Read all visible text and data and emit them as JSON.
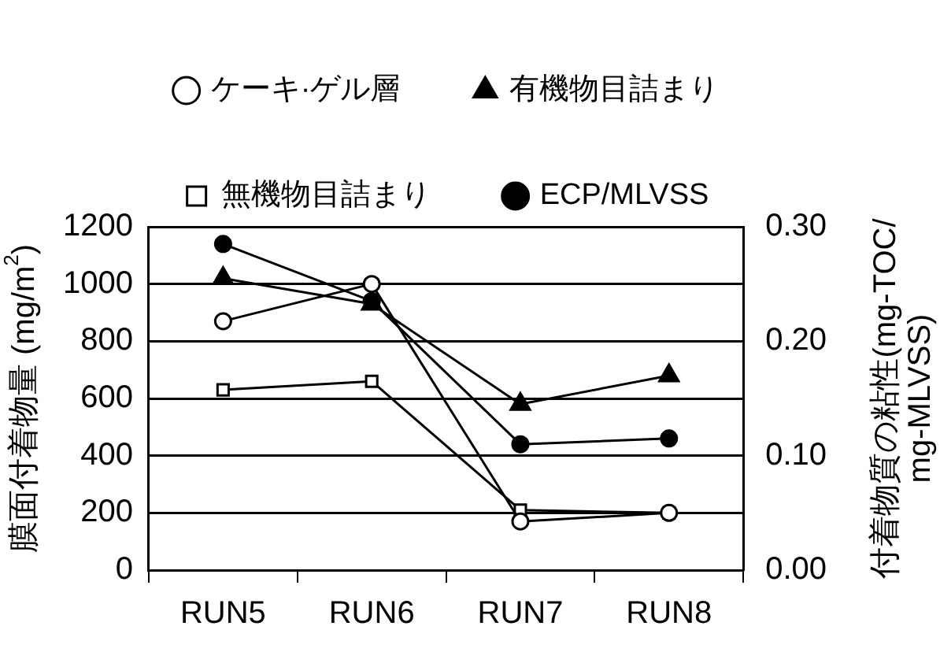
{
  "chart_data": {
    "type": "line",
    "categories": [
      "RUN5",
      "RUN6",
      "RUN7",
      "RUN8"
    ],
    "ylabel": "膜面付着物量 (mg/m$^{2}$)",
    "y2label": "付着物質の粘性(mg-TOC/mg-MLVSS)",
    "ylim": [
      0,
      1200
    ],
    "yticks": [
      0,
      200,
      400,
      600,
      800,
      1000,
      1200
    ],
    "y2lim": [
      0,
      0.3
    ],
    "y2ticks": [
      {
        "value": 0,
        "label": "0.00"
      },
      {
        "value": 0.1,
        "label": "0.10"
      },
      {
        "value": 0.2,
        "label": "0.20"
      },
      {
        "value": 0.3,
        "label": "0.30"
      }
    ],
    "grid": "y",
    "legend": "top",
    "line_style": "solid",
    "series": [
      {
        "name": "ケーキ·ゲル層",
        "color": "#000000",
        "marker": "circle",
        "colors": [
          "#ffffff",
          "#ffffff",
          "#ffffff",
          "#ffffff"
        ],
        "values": [
          870,
          1000,
          170,
          200
        ]
      },
      {
        "name": "有機物目詰まり",
        "color": "#000000",
        "marker": "triangle",
        "values": [
          1020,
          930,
          580,
          680
        ]
      },
      {
        "name": "無機物目詰まり",
        "color": "#000000",
        "marker": "square",
        "colors": [
          "#ffffff",
          "#ffffff",
          "#ffffff",
          "#ffffff"
        ],
        "values": [
          630,
          660,
          210,
          200
        ]
      },
      {
        "name": "ECP/MLVSS",
        "color": "#000000",
        "marker": "circle",
        "axis": "y2",
        "values": [
          0.285,
          0.235,
          0.11,
          0.115
        ]
      }
    ]
  }
}
